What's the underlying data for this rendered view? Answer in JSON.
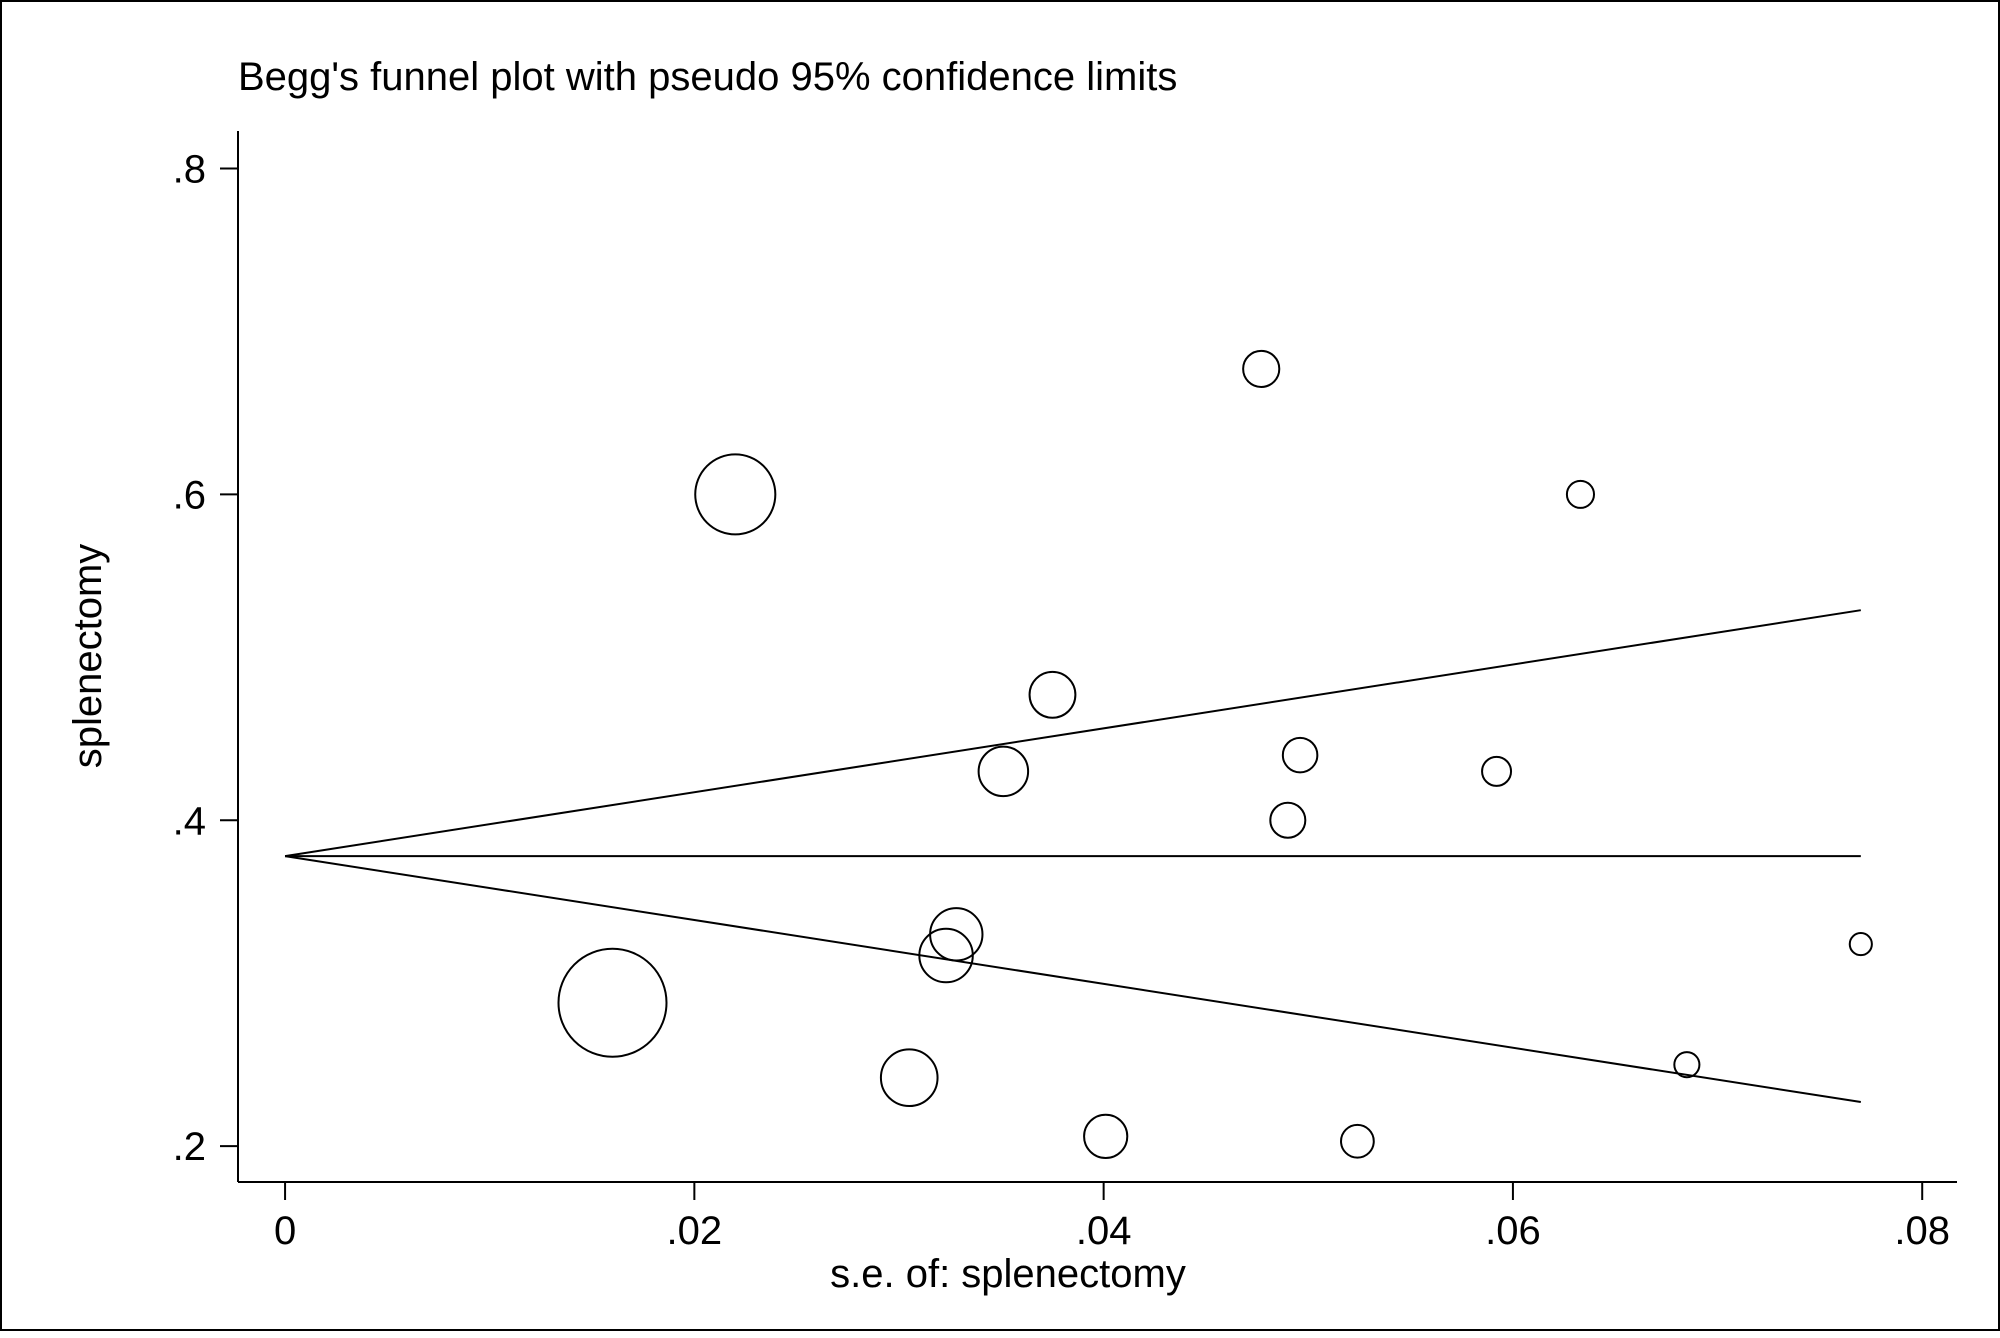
{
  "chart_data": {
    "type": "scatter",
    "title": "Begg's funnel plot with pseudo 95% confidence limits",
    "xlabel": "s.e. of: splenectomy",
    "ylabel": "splenectomy",
    "xlim": [
      -0.0023,
      0.0817
    ],
    "ylim": [
      0.178,
      0.823
    ],
    "xticks": [
      {
        "value": 0,
        "label": "0"
      },
      {
        "value": 0.02,
        "label": ".02"
      },
      {
        "value": 0.04,
        "label": ".04"
      },
      {
        "value": 0.06,
        "label": ".06"
      },
      {
        "value": 0.08,
        "label": ".08"
      }
    ],
    "yticks": [
      {
        "value": 0.2,
        "label": ".2"
      },
      {
        "value": 0.4,
        "label": ".4"
      },
      {
        "value": 0.6,
        "label": ".6"
      },
      {
        "value": 0.8,
        "label": ".8"
      }
    ],
    "pooled_estimate": 0.378,
    "ci_multiplier": 1.96,
    "se_max": 0.077,
    "points": [
      {
        "x": 0.016,
        "y": 0.288,
        "weight": 1.0
      },
      {
        "x": 0.022,
        "y": 0.6,
        "weight": 0.55
      },
      {
        "x": 0.0305,
        "y": 0.242,
        "weight": 0.275
      },
      {
        "x": 0.0323,
        "y": 0.317,
        "weight": 0.245
      },
      {
        "x": 0.0328,
        "y": 0.33,
        "weight": 0.235
      },
      {
        "x": 0.0351,
        "y": 0.43,
        "weight": 0.21
      },
      {
        "x": 0.0375,
        "y": 0.477,
        "weight": 0.18
      },
      {
        "x": 0.0401,
        "y": 0.206,
        "weight": 0.16
      },
      {
        "x": 0.0477,
        "y": 0.677,
        "weight": 0.112
      },
      {
        "x": 0.049,
        "y": 0.4,
        "weight": 0.105
      },
      {
        "x": 0.0496,
        "y": 0.44,
        "weight": 0.102
      },
      {
        "x": 0.0524,
        "y": 0.203,
        "weight": 0.092
      },
      {
        "x": 0.0592,
        "y": 0.43,
        "weight": 0.072
      },
      {
        "x": 0.0633,
        "y": 0.6,
        "weight": 0.063
      },
      {
        "x": 0.0685,
        "y": 0.25,
        "weight": 0.054
      },
      {
        "x": 0.077,
        "y": 0.324,
        "weight": 0.042
      }
    ],
    "grid": false,
    "legend": "none",
    "colors": {
      "background": "#ffffff",
      "ink": "#000000"
    }
  }
}
